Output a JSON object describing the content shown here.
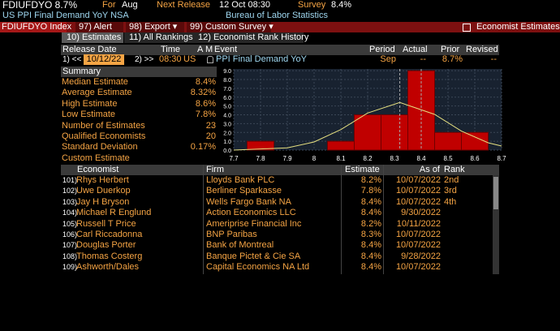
{
  "top": {
    "ticker": "FDIUFDYO 8.7%",
    "for_label": "For",
    "for_value": "Aug",
    "next_label": "Next Release",
    "next_value": "12 Oct 08:30",
    "survey_label": "Survey",
    "survey_value": "8.4%",
    "description": "US PPI Final Demand YoY NSA",
    "source": "Bureau of Labor Statistics"
  },
  "toolbar": {
    "security": "FDIUFDYO Index",
    "buttons": [
      "97) Alert",
      "98) Export ▾",
      "99) Custom Survey ▾"
    ],
    "right": "Economist Estimates"
  },
  "tabs": [
    "10) Estimates",
    "11) All Rankings",
    "12) Economist Rank History"
  ],
  "event": {
    "headers": [
      "Release Date",
      "Time",
      "A",
      "M",
      "Event",
      "Period",
      "Actual",
      "Prior",
      "Revised"
    ],
    "nav_prev": "1) <<",
    "date": "10/12/22",
    "nav_next": "2) >>",
    "time": "08:30",
    "country": "US",
    "event": "PPI Final Demand YoY",
    "period": "Sep",
    "actual": "--",
    "prior": "8.7%",
    "revised": "--"
  },
  "summary": {
    "title": "Summary",
    "rows": [
      {
        "label": "Median Estimate",
        "value": "8.4%"
      },
      {
        "label": "Average Estimate",
        "value": "8.32%"
      },
      {
        "label": "High Estimate",
        "value": "8.6%"
      },
      {
        "label": "Low Estimate",
        "value": "7.8%"
      },
      {
        "label": "Number of Estimates",
        "value": "23"
      },
      {
        "label": "Qualified Economists",
        "value": "20"
      },
      {
        "label": "Standard Deviation",
        "value": "0.17%"
      },
      {
        "label": "Custom Estimate"
      }
    ]
  },
  "histogram": {
    "type": "histogram",
    "color": "#c00000",
    "bins": [
      7.75,
      7.85,
      7.95,
      8.05,
      8.15,
      8.25,
      8.35,
      8.45,
      8.55,
      8.65
    ],
    "counts": [
      1,
      0,
      0,
      1,
      4,
      4,
      9,
      2,
      2
    ],
    "xlim": [
      7.7,
      8.7
    ],
    "xticks": [
      7.7,
      7.8,
      7.9,
      8.0,
      8.1,
      8.2,
      8.3,
      8.4,
      8.5,
      8.6,
      8.7
    ],
    "ylim": [
      0,
      9.2
    ],
    "yticks": [
      {
        "value": 0,
        "label": "0.0"
      },
      {
        "value": 1,
        "label": "1.0"
      },
      {
        "value": 2,
        "label": "2.0"
      },
      {
        "value": 3,
        "label": "3.0"
      },
      {
        "value": 4,
        "label": "4.0"
      },
      {
        "value": 5,
        "label": "5.0"
      },
      {
        "value": 6,
        "label": "6.0"
      },
      {
        "value": 7,
        "label": "7.0"
      },
      {
        "value": 8,
        "label": "8.0"
      },
      {
        "value": 9,
        "label": "9.0"
      }
    ]
  },
  "estimates": {
    "headers": [
      "Economist",
      "Firm",
      "Estimate",
      "As of",
      "Rank"
    ],
    "rows": [
      {
        "num": "101)",
        "economist": "Rhys Herbert",
        "firm": "Lloyds Bank PLC",
        "estimate": "8.2%",
        "as_of": "10/07/2022",
        "rank": "2nd"
      },
      {
        "num": "102)",
        "economist": "Uwe Duerkop",
        "firm": "Berliner Sparkasse",
        "estimate": "7.8%",
        "as_of": "10/07/2022",
        "rank": "3rd"
      },
      {
        "num": "103)",
        "economist": "Jay H Bryson",
        "firm": "Wells Fargo Bank NA",
        "estimate": "8.4%",
        "as_of": "10/07/2022",
        "rank": "4th"
      },
      {
        "num": "104)",
        "economist": "Michael R Englund",
        "firm": "Action Economics LLC",
        "estimate": "8.4%",
        "as_of": "9/30/2022"
      },
      {
        "num": "105)",
        "economist": "Russell T Price",
        "firm": "Ameriprise Financial Inc",
        "estimate": "8.2%",
        "as_of": "10/11/2022"
      },
      {
        "num": "106)",
        "economist": "Carl Riccadonna",
        "firm": "BNP Paribas",
        "estimate": "8.3%",
        "as_of": "10/07/2022"
      },
      {
        "num": "107)",
        "economist": "Douglas Porter",
        "firm": "Bank of Montreal",
        "estimate": "8.4%",
        "as_of": "10/07/2022"
      },
      {
        "num": "108)",
        "economist": "Thomas Costerg",
        "firm": "Banque Pictet & Cie SA",
        "estimate": "8.4%",
        "as_of": "9/28/2022"
      },
      {
        "num": "109)",
        "economist": "Ashworth/Dales",
        "firm": "Capital Economics NA Ltd",
        "estimate": "8.4%",
        "as_of": "10/07/2022"
      }
    ]
  }
}
